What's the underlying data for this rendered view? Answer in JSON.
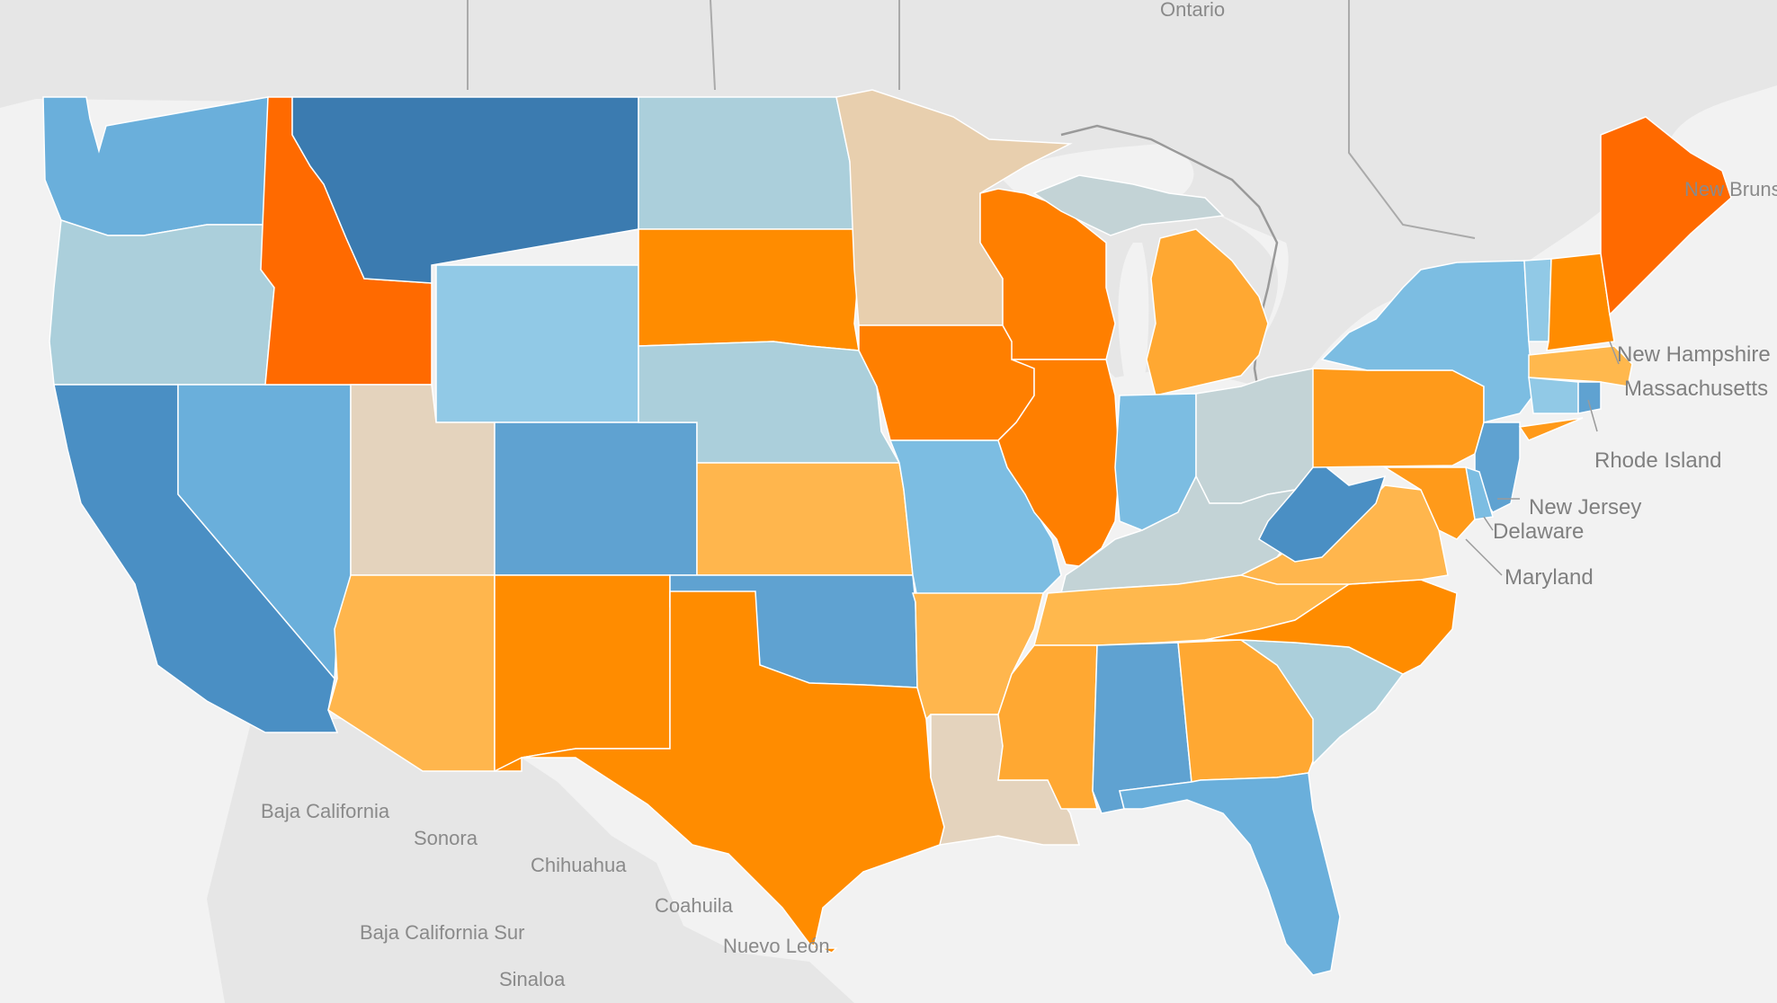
{
  "map": {
    "background_labels": {
      "ontario": "Ontario",
      "new_brunswick": "New Brunswick",
      "baja_california": "Baja California",
      "sonora": "Sonora",
      "chihuahua": "Chihuahua",
      "coahuila": "Coahuila",
      "nuevo_leon": "Nuevo León",
      "baja_california_sur": "Baja California Sur",
      "sinaloa": "Sinaloa"
    },
    "callout_labels": {
      "new_hampshire": "New Hampshire",
      "massachusetts": "Massachusetts",
      "rhode_island": "Rhode Island",
      "new_jersey": "New Jersey",
      "delaware": "Delaware",
      "maryland": "Maryland"
    },
    "colors": {
      "land": "#e6e6e6",
      "water": "#f2f2f2",
      "blue_dark": "#3b7bb0",
      "blue_mid": "#4a8fc4",
      "blue": "#5fa2d1",
      "blue_light": "#6aafdb",
      "blue_lighter": "#7cbde2",
      "blue_pale": "#91c9e6",
      "blue_gray": "#abcfdb",
      "gray_blue": "#c3d3d6",
      "tan": "#e4d3bd",
      "tan_light": "#e8cfae",
      "orange_light": "#ffb64d",
      "orange_mid_light": "#ffa832",
      "orange": "#ff8c00",
      "orange_dark": "#ff7f00",
      "orange_deep": "#ff6a00"
    }
  }
}
